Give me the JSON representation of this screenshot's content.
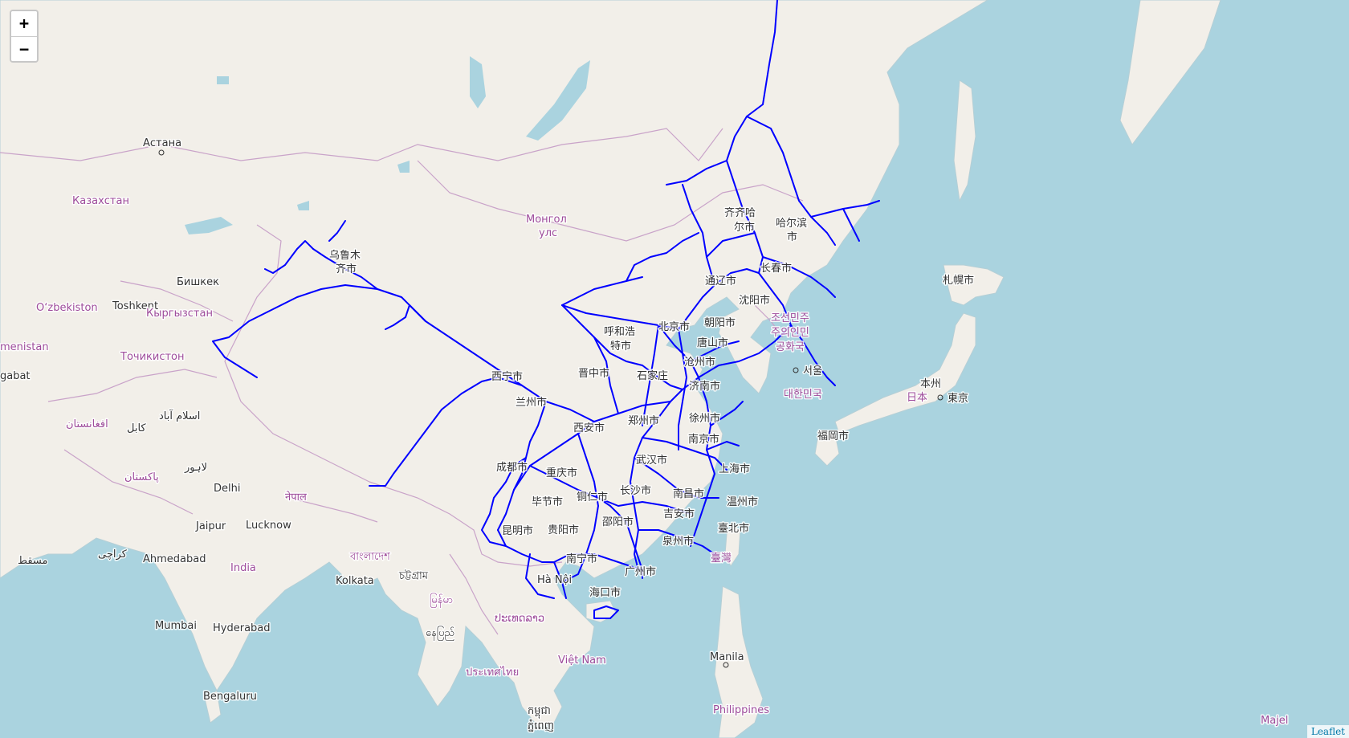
{
  "map": {
    "zoom_in_label": "+",
    "zoom_out_label": "−",
    "attribution": "Leaflet",
    "route_color": "#0000ff",
    "land_color": "#f2efe9",
    "water_color": "#aad3df",
    "border_color": "#c9a3c9",
    "labels": {
      "astana": "Астана",
      "kazakhstan": "Казахстан",
      "urumqi_1": "乌鲁木",
      "urumqi_2": "齐市",
      "bishkek": "Бишкек",
      "toshkent": "Toshkent",
      "uzbekistan": "O‘zbekiston",
      "kyrgyzstan": "Кыргызстан",
      "turkmenistan": "menistan",
      "ashgabat": "gabat",
      "tajikistan": "Точикистон",
      "afghanistan": "افغانستان",
      "kabul": "کابل",
      "islamabad": "اسلام آباد",
      "lahore": "لاہور",
      "pakistan": "پاکستان",
      "delhi": "Delhi",
      "nepal": "नेपाल",
      "jaipur": "Jaipur",
      "lucknow": "Lucknow",
      "muscat": "مسقط",
      "karachi": "کراچی",
      "ahmedabad": "Ahmedabad",
      "india": "India",
      "bangladesh": "বাংলাদেশ",
      "kolkata": "Kolkata",
      "chittagong": "চট্টগ্রাম",
      "mumbai": "Mumbai",
      "hyderabad": "Hyderabad",
      "bengaluru": "Bengaluru",
      "myanmar": "မြန်မာ",
      "naypyitaw": "နေပြည်",
      "laos": "ປະເທດລາວ",
      "thailand": "ประเทศไทย",
      "cambodia": "កម្ពុជា",
      "phnompenh": "ភ្នំពេញ",
      "vietnam": "Việt Nam",
      "hanoi": "Hà Nội",
      "mongolia_1": "Монгол",
      "mongolia_2": "улс",
      "qiqihar_1": "齐齐哈",
      "qiqihar_2": "尔市",
      "harbin_1": "哈尔滨",
      "harbin_2": "市",
      "changchun": "长春市",
      "tongliao": "通辽市",
      "shenyang": "沈阳市",
      "chaoyang": "朝阳市",
      "beijing": "北京市",
      "tangshan": "唐山市",
      "baotou_1": "呼和浩",
      "baotou_2": "特市",
      "cangzhou": "沧州市",
      "shijiazhuang": "石家庄",
      "jinan": "济南市",
      "jinzhong": "晋中市",
      "xining": "西宁市",
      "lanzhou": "兰州市",
      "xian": "西安市",
      "zhengzhou": "郑州市",
      "xuzhou": "徐州市",
      "nanjing": "南京市",
      "wuhan": "武汉市",
      "shanghai": "上海市",
      "chengdu": "成都市",
      "chongqing": "重庆市",
      "tongren": "铜仁市",
      "changsha": "长沙市",
      "nanchang": "南昌市",
      "wenzhou": "温州市",
      "bijie": "毕节市",
      "guiyang": "贵阳市",
      "shaoyang": "邵阳市",
      "jian": "吉安市",
      "kunming": "昆明市",
      "quanzhou": "泉州市",
      "taipei": "臺北市",
      "taiwan": "臺灣",
      "nanning": "南宁市",
      "guangzhou": "广州市",
      "haikou": "海口市",
      "nkorea_1": "조선민주",
      "nkorea_2": "주의인민",
      "nkorea_3": "공화국",
      "seoul": "서울",
      "skorea": "대한민국",
      "sapporo": "札幌市",
      "honshu": "本州",
      "japan": "日本",
      "tokyo": "東京",
      "fukuoka": "福岡市",
      "manila": "Manila",
      "philippines": "Philippines",
      "majel": "Majel"
    }
  }
}
